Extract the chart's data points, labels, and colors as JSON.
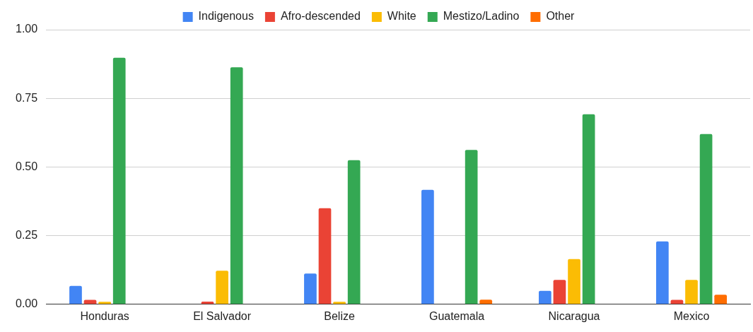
{
  "chart_data": {
    "type": "bar",
    "categories": [
      "Honduras",
      "El Salvador",
      "Belize",
      "Guatemala",
      "Nicaragua",
      "Mexico"
    ],
    "series": [
      {
        "name": "Indigenous",
        "color": "#4285f4",
        "values": [
          0.067,
          0,
          0.112,
          0.417,
          0.049,
          0.229
        ]
      },
      {
        "name": "Afro-descended",
        "color": "#ea4335",
        "values": [
          0.016,
          0.01,
          0.35,
          0,
          0.089,
          0.016
        ]
      },
      {
        "name": "White",
        "color": "#fbbc04",
        "values": [
          0.009,
          0.122,
          0.009,
          0,
          0.165,
          0.089
        ]
      },
      {
        "name": "Mestizo/Ladino",
        "color": "#34a853",
        "values": [
          0.898,
          0.863,
          0.525,
          0.562,
          0.692,
          0.62
        ]
      },
      {
        "name": "Other",
        "color": "#ff6d01",
        "values": [
          0,
          0,
          0,
          0.017,
          0,
          0.035
        ]
      }
    ],
    "ylim": [
      0,
      1
    ],
    "yticks": [
      {
        "value": 0,
        "label": "0.00"
      },
      {
        "value": 0.25,
        "label": "0.25"
      },
      {
        "value": 0.5,
        "label": "0.50"
      },
      {
        "value": 0.75,
        "label": "0.75"
      },
      {
        "value": 1,
        "label": "1.00"
      }
    ],
    "grid": "y",
    "legend": "top"
  }
}
